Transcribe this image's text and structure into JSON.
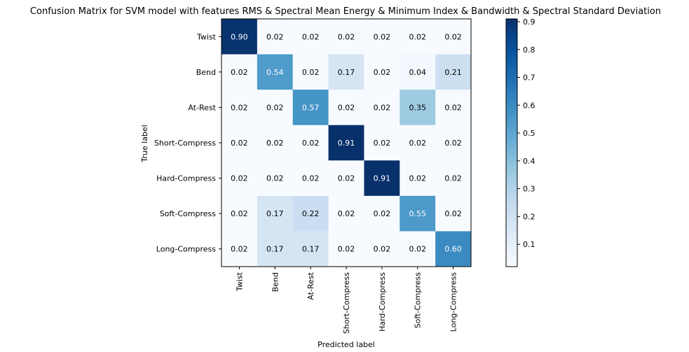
{
  "chart_data": {
    "type": "heatmap",
    "title": "Confusion Matrix for SVM model with features RMS & Spectral Mean Energy & Minimum Index & Bandwidth & Spectral Standard Deviation",
    "xlabel": "Predicted label",
    "ylabel": "True label",
    "row_labels": [
      "Twist",
      "Bend",
      "At-Rest",
      "Short-Compress",
      "Hard-Compress",
      "Soft-Compress",
      "Long-Compress"
    ],
    "col_labels": [
      "Twist",
      "Bend",
      "At-Rest",
      "Short-Compress",
      "Hard-Compress",
      "Soft-Compress",
      "Long-Compress"
    ],
    "values": [
      [
        0.9,
        0.02,
        0.02,
        0.02,
        0.02,
        0.02,
        0.02
      ],
      [
        0.02,
        0.54,
        0.02,
        0.17,
        0.02,
        0.04,
        0.21
      ],
      [
        0.02,
        0.02,
        0.57,
        0.02,
        0.02,
        0.35,
        0.02
      ],
      [
        0.02,
        0.02,
        0.02,
        0.91,
        0.02,
        0.02,
        0.02
      ],
      [
        0.02,
        0.02,
        0.02,
        0.02,
        0.91,
        0.02,
        0.02
      ],
      [
        0.02,
        0.17,
        0.22,
        0.02,
        0.02,
        0.55,
        0.02
      ],
      [
        0.02,
        0.17,
        0.17,
        0.02,
        0.02,
        0.02,
        0.6
      ]
    ],
    "colormap": "Blues",
    "colorbar": {
      "min": 0.02,
      "max": 0.91,
      "ticks": [
        0.1,
        0.2,
        0.3,
        0.4,
        0.5,
        0.6,
        0.7,
        0.8,
        0.9
      ],
      "tick_labels": [
        "0.1",
        "0.2",
        "0.3",
        "0.4",
        "0.5",
        "0.6",
        "0.7",
        "0.8",
        "0.9"
      ]
    },
    "grid": false
  }
}
